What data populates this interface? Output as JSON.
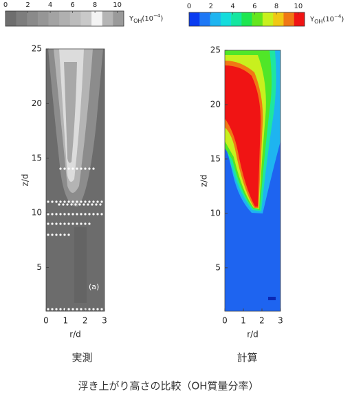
{
  "chart_data": [
    {
      "type": "contour",
      "caption": "実測",
      "xlabel": "r/d",
      "ylabel": "z/d",
      "xlim": [
        0,
        3
      ],
      "xticks": [
        0,
        1,
        2,
        3
      ],
      "ylim": [
        1,
        25
      ],
      "yticks": [
        5,
        10,
        15,
        20,
        25
      ],
      "annotation": "(a)",
      "colorbar": {
        "symbol": "Y",
        "subscript": "OH",
        "unit": "(10",
        "exponent": "−4",
        "unit_end": ")",
        "lim": [
          0,
          10
        ],
        "ticks": [
          0,
          2,
          4,
          6,
          8,
          10
        ],
        "colors": [
          "#6e6e6e",
          "#7d7d7d",
          "#8a8a8a",
          "#969696",
          "#a3a3a3",
          "#b0b0b0",
          "#bcbcbc",
          "#c9c9c9",
          "#f4f4f4",
          "#b5b5b5",
          "#9a9a9a"
        ]
      }
    },
    {
      "type": "contour",
      "caption": "計算",
      "xlabel": "r/d",
      "ylabel": "z/d",
      "xlim": [
        0,
        3
      ],
      "xticks": [
        0,
        1,
        2,
        3
      ],
      "ylim": [
        1,
        25
      ],
      "yticks": [
        5,
        10,
        15,
        20,
        25
      ],
      "colorbar": {
        "symbol": "Y",
        "subscript": "OH",
        "unit": "(10",
        "exponent": "−4",
        "unit_end": ")",
        "lim": [
          0,
          10
        ],
        "ticks": [
          0,
          2,
          4,
          6,
          8,
          10
        ],
        "colors": [
          "#0a3cf0",
          "#1e78f5",
          "#1eb4f0",
          "#14dcdc",
          "#14e6a0",
          "#1ee650",
          "#64e61e",
          "#c8f01e",
          "#f0c814",
          "#f07814",
          "#f01414"
        ]
      }
    }
  ],
  "figure_caption": "浮き上がり高さの比較（OH質量分率）"
}
